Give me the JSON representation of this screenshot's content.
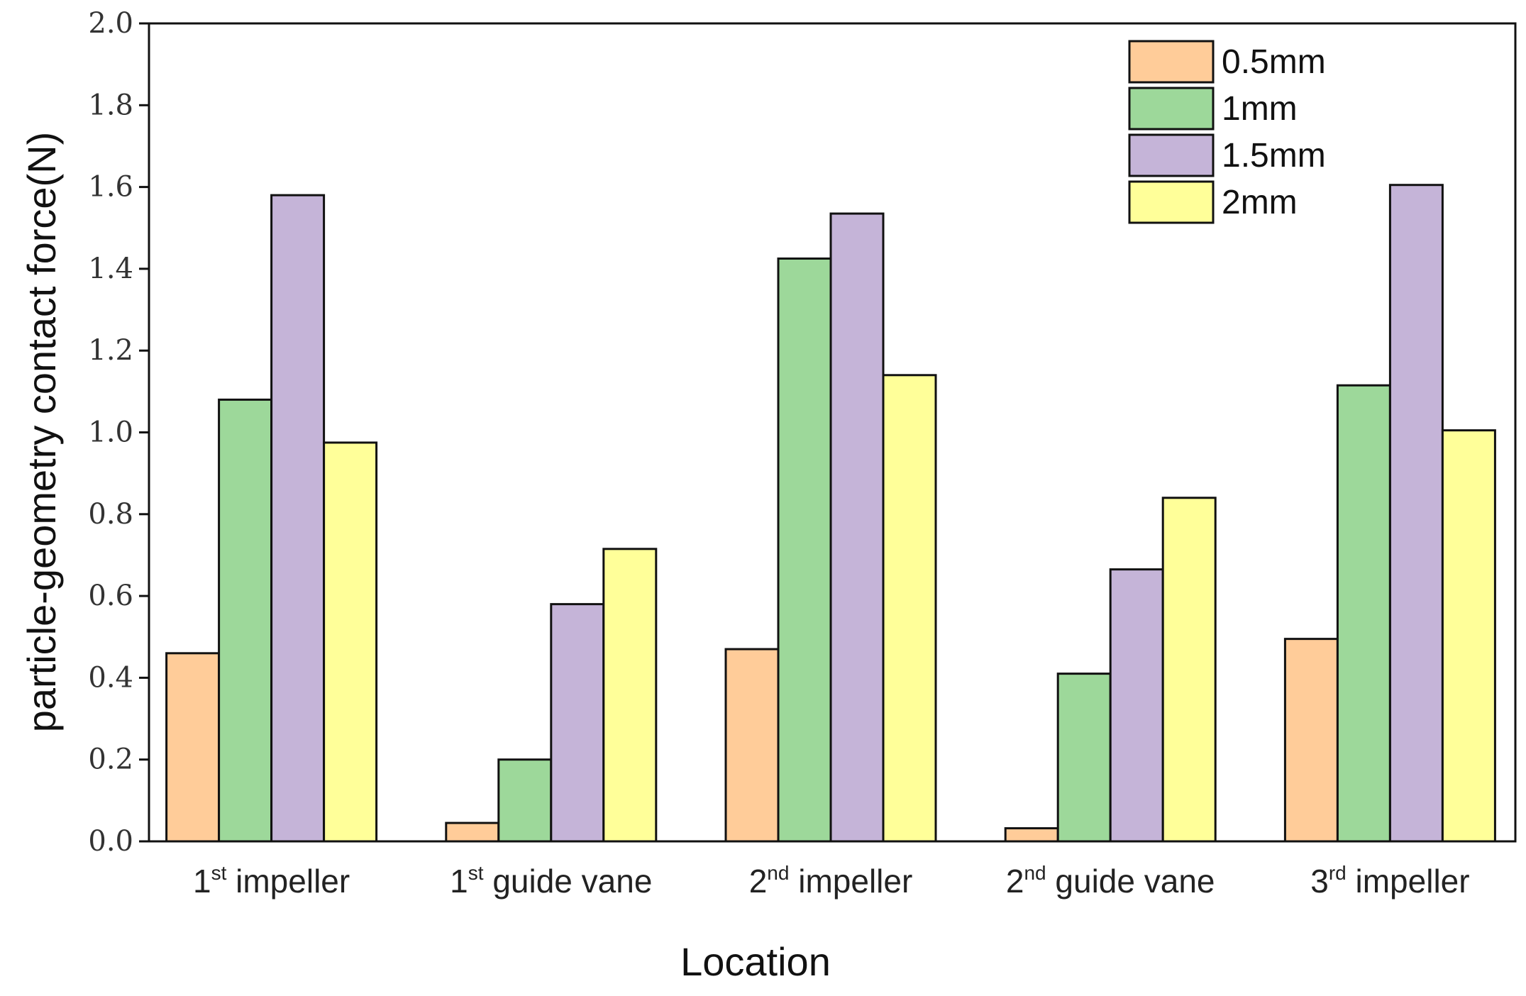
{
  "chart_data": {
    "type": "bar",
    "title": "",
    "xlabel": "Location",
    "ylabel": "particle-geometry contact force(N)",
    "ylim": [
      0,
      2.0
    ],
    "yticks": [
      "0.0",
      "0.2",
      "0.4",
      "0.6",
      "0.8",
      "1.0",
      "1.2",
      "1.4",
      "1.6",
      "1.8",
      "2.0"
    ],
    "grid": false,
    "legend_position": "top-right",
    "categories": [
      {
        "label": "1st impeller",
        "prefix": "1",
        "sup": "st",
        "suffix": " impeller"
      },
      {
        "label": "1st guide vane",
        "prefix": "1",
        "sup": "st",
        "suffix": " guide vane"
      },
      {
        "label": "2nd impeller",
        "prefix": "2",
        "sup": "nd",
        "suffix": " impeller"
      },
      {
        "label": "2nd guide vane",
        "prefix": "2",
        "sup": "nd",
        "suffix": " guide vane"
      },
      {
        "label": "3rd impeller",
        "prefix": "3",
        "sup": "rd",
        "suffix": " impeller"
      }
    ],
    "series": [
      {
        "name": "0.5mm",
        "color": "#FFCC99",
        "values": [
          0.46,
          0.045,
          0.47,
          0.032,
          0.495
        ]
      },
      {
        "name": "1mm",
        "color": "#9DD89A",
        "values": [
          1.08,
          0.2,
          1.425,
          0.41,
          1.115
        ]
      },
      {
        "name": "1.5mm",
        "color": "#C5B4D8",
        "values": [
          1.58,
          0.58,
          1.535,
          0.665,
          1.605
        ]
      },
      {
        "name": "2mm",
        "color": "#FFFF99",
        "values": [
          0.975,
          0.715,
          1.14,
          0.84,
          1.005
        ]
      }
    ]
  }
}
